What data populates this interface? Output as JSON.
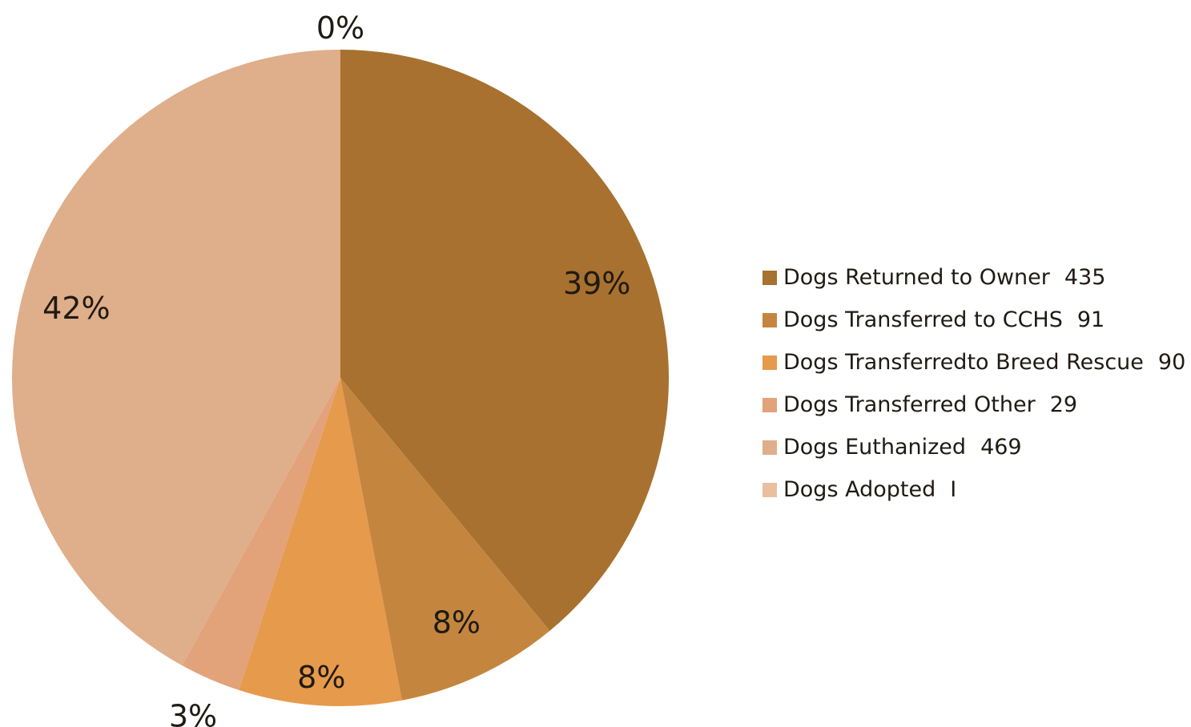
{
  "chart_data": {
    "type": "pie",
    "title": "",
    "start": "top",
    "direction": "clockwise",
    "slices": [
      {
        "label": "Dogs Returned to Owner",
        "count": "435",
        "value": 39,
        "percent_label": "39%",
        "color": "#a8712f"
      },
      {
        "label": "Dogs Transferred to CCHS",
        "count": "91",
        "value": 8,
        "percent_label": "8%",
        "color": "#c4863e"
      },
      {
        "label": "Dogs Transferredto Breed Rescue",
        "count": "90",
        "value": 8,
        "percent_label": "8%",
        "color": "#e69a4b"
      },
      {
        "label": "Dogs Transferred Other",
        "count": "29",
        "value": 3,
        "percent_label": "3%",
        "color": "#e2a27a"
      },
      {
        "label": "Dogs Euthanized",
        "count": "469",
        "value": 42,
        "percent_label": "42%",
        "color": "#dfae8a"
      },
      {
        "label": "Dogs Adopted",
        "count": "I",
        "value": 0,
        "percent_label": "0%",
        "color": "#e9bf9e"
      }
    ],
    "legend": {
      "position": "right"
    }
  }
}
